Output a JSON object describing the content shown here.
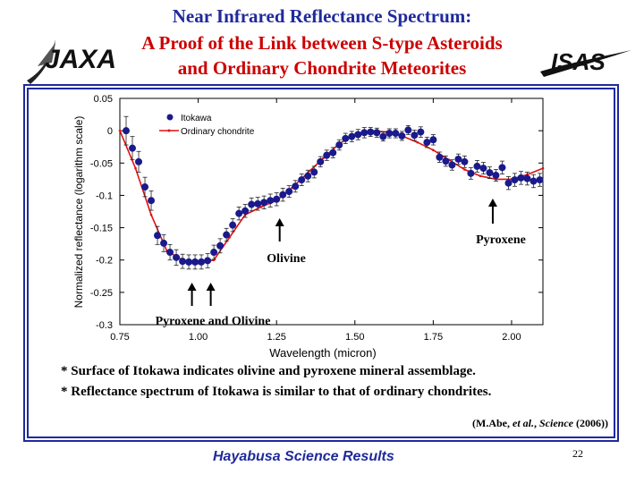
{
  "slide": {
    "title_line1": "Near Infrared Reflectance Spectrum:",
    "title_line2": "A Proof of the Link between S-type Asteroids",
    "title_line3": "and Ordinary Chondrite Meteorites",
    "left_logo": "JAXA",
    "right_logo": "ISAS",
    "note1": "* Surface of Itokawa indicates olivine and pyroxene mineral assemblage.",
    "note2": "* Reflectance spectrum of Itokawa is similar to that of ordinary chondrites.",
    "citation_prefix": "(M.Abe, ",
    "citation_etal": "et al.",
    "citation_sep": ", ",
    "citation_journal": "Science",
    "citation_year": " (2006))",
    "footer": "Hayabusa Science Results",
    "page_number": "22"
  },
  "colors": {
    "title_blue": "#1f2a9c",
    "title_red": "#cc0000",
    "itokawa_marker": "#1a1a8c",
    "chondrite_line": "#e01010"
  },
  "chart_data": {
    "type": "scatter",
    "xlabel": "Wavelength (micron)",
    "ylabel": "Normalized reflectance (logarithm scale)",
    "xlim": [
      0.75,
      2.1
    ],
    "ylim": [
      -0.3,
      0.05
    ],
    "xticks": [
      "0.75",
      "1.00",
      "1.25",
      "1.50",
      "1.75",
      "2.00"
    ],
    "xtick_values": [
      0.75,
      1.0,
      1.25,
      1.5,
      1.75,
      2.0
    ],
    "yticks": [
      "0.05",
      "0",
      "-0.05",
      "-0.1",
      "-0.15",
      "-0.2",
      "-0.25",
      "-0.3"
    ],
    "ytick_values": [
      0.05,
      0,
      -0.05,
      -0.1,
      -0.15,
      -0.2,
      -0.25,
      -0.3
    ],
    "grid": false,
    "legend_position": "top-left",
    "series": [
      {
        "name": "Itokawa",
        "style": "markers-with-errorbars",
        "x": [
          0.77,
          0.79,
          0.81,
          0.83,
          0.85,
          0.87,
          0.89,
          0.91,
          0.93,
          0.95,
          0.97,
          0.99,
          1.01,
          1.03,
          1.05,
          1.07,
          1.09,
          1.11,
          1.13,
          1.15,
          1.17,
          1.19,
          1.21,
          1.23,
          1.25,
          1.27,
          1.29,
          1.31,
          1.33,
          1.35,
          1.37,
          1.39,
          1.41,
          1.43,
          1.45,
          1.47,
          1.49,
          1.51,
          1.53,
          1.55,
          1.57,
          1.59,
          1.61,
          1.63,
          1.65,
          1.67,
          1.69,
          1.71,
          1.73,
          1.75,
          1.77,
          1.79,
          1.81,
          1.83,
          1.85,
          1.87,
          1.89,
          1.91,
          1.93,
          1.95,
          1.97,
          1.99,
          2.01,
          2.03,
          2.05,
          2.07,
          2.09
        ],
        "y": [
          0.0,
          -0.027,
          -0.048,
          -0.087,
          -0.108,
          -0.162,
          -0.174,
          -0.188,
          -0.196,
          -0.202,
          -0.203,
          -0.203,
          -0.203,
          -0.201,
          -0.188,
          -0.178,
          -0.161,
          -0.146,
          -0.128,
          -0.124,
          -0.114,
          -0.113,
          -0.111,
          -0.108,
          -0.106,
          -0.099,
          -0.094,
          -0.086,
          -0.076,
          -0.07,
          -0.064,
          -0.048,
          -0.038,
          -0.034,
          -0.022,
          -0.012,
          -0.009,
          -0.006,
          -0.003,
          -0.002,
          -0.003,
          -0.009,
          -0.004,
          -0.004,
          -0.008,
          0.001,
          -0.007,
          -0.002,
          -0.018,
          -0.014,
          -0.041,
          -0.047,
          -0.053,
          -0.044,
          -0.048,
          -0.066,
          -0.055,
          -0.058,
          -0.065,
          -0.069,
          -0.057,
          -0.081,
          -0.076,
          -0.073,
          -0.074,
          -0.078,
          -0.076
        ],
        "err": [
          0.022,
          0.018,
          0.016,
          0.015,
          0.015,
          0.014,
          0.013,
          0.012,
          0.012,
          0.011,
          0.011,
          0.011,
          0.011,
          0.011,
          0.011,
          0.011,
          0.01,
          0.01,
          0.01,
          0.01,
          0.01,
          0.01,
          0.01,
          0.01,
          0.01,
          0.01,
          0.009,
          0.009,
          0.009,
          0.009,
          0.009,
          0.008,
          0.008,
          0.008,
          0.008,
          0.008,
          0.008,
          0.008,
          0.008,
          0.007,
          0.007,
          0.007,
          0.007,
          0.007,
          0.007,
          0.007,
          0.008,
          0.008,
          0.008,
          0.008,
          0.008,
          0.008,
          0.008,
          0.008,
          0.009,
          0.009,
          0.009,
          0.009,
          0.009,
          0.009,
          0.01,
          0.01,
          0.01,
          0.01,
          0.01,
          0.01,
          0.01
        ]
      },
      {
        "name": "Ordinary chondrite",
        "style": "line",
        "x": [
          0.75,
          0.8,
          0.85,
          0.9,
          0.95,
          1.0,
          1.05,
          1.1,
          1.15,
          1.2,
          1.25,
          1.3,
          1.35,
          1.4,
          1.45,
          1.5,
          1.55,
          1.6,
          1.65,
          1.7,
          1.75,
          1.8,
          1.85,
          1.9,
          1.95,
          2.0,
          2.05,
          2.1
        ],
        "y": [
          0.0,
          -0.058,
          -0.13,
          -0.186,
          -0.2,
          -0.205,
          -0.2,
          -0.165,
          -0.13,
          -0.118,
          -0.108,
          -0.088,
          -0.065,
          -0.042,
          -0.02,
          -0.006,
          0.0,
          -0.002,
          -0.008,
          -0.018,
          -0.03,
          -0.045,
          -0.06,
          -0.07,
          -0.075,
          -0.075,
          -0.068,
          -0.058
        ]
      }
    ],
    "annotations": [
      {
        "text": "Pyroxene and Olivine",
        "arrows_at_x": [
          0.98,
          1.04
        ]
      },
      {
        "text": "Olivine",
        "arrows_at_x": [
          1.26
        ]
      },
      {
        "text": "Pyroxene",
        "arrows_at_x": [
          1.94
        ]
      }
    ]
  }
}
